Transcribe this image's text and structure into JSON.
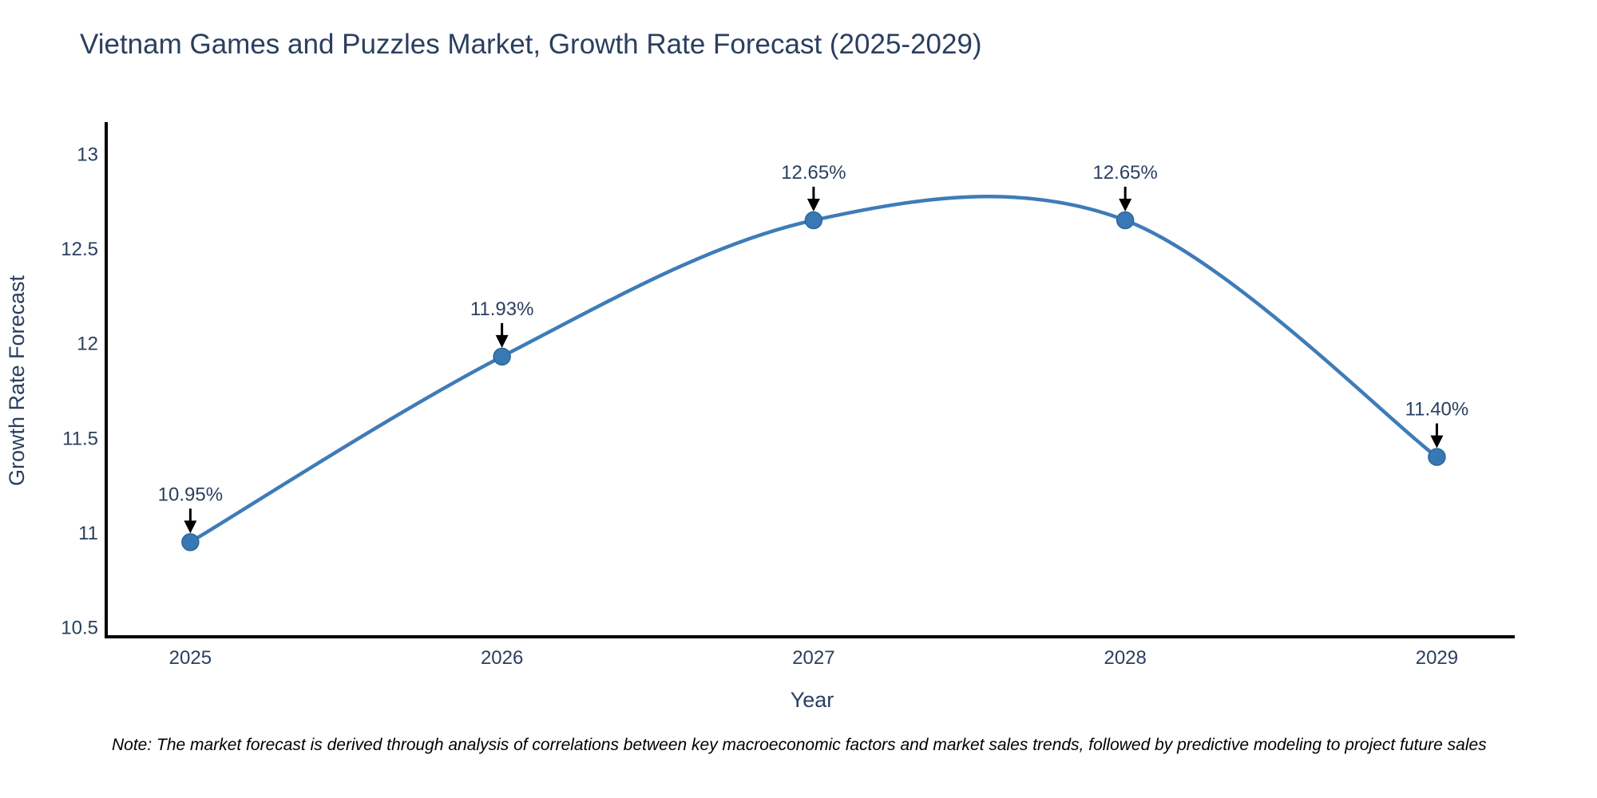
{
  "title": "Vietnam Games and Puzzles Market, Growth Rate Forecast (2025-2029)",
  "note": "Note: The market forecast is derived through analysis of correlations between key macroeconomic factors and market sales trends, followed by predictive modeling to project future sales",
  "chart_data": {
    "type": "line",
    "line_shape": "spline",
    "x": [
      2025,
      2026,
      2027,
      2028,
      2029
    ],
    "y": [
      10.95,
      11.93,
      12.65,
      12.65,
      11.4
    ],
    "point_labels": [
      "10.95%",
      "11.93%",
      "12.65%",
      "12.65%",
      "11.40%"
    ],
    "title": "Vietnam Games and Puzzles Market, Growth Rate Forecast (2025-2029)",
    "xlabel": "Year",
    "ylabel": "Growth Rate Forecast",
    "xticks": [
      "2025",
      "2026",
      "2027",
      "2028",
      "2029"
    ],
    "yticks": [
      10.5,
      11,
      11.5,
      12,
      12.5,
      13
    ],
    "xlim": [
      2024.73,
      2029.25
    ],
    "ylim": [
      10.45,
      13.16
    ],
    "grid": false,
    "legend": false,
    "colors": {
      "line": "#3e7cb8",
      "marker": "#3878b4",
      "marker_edge": "#2f6699",
      "axis": "#000000",
      "text": "#2a3f5f",
      "annotation_arrow": "#000000",
      "note_text": "#000000"
    }
  }
}
